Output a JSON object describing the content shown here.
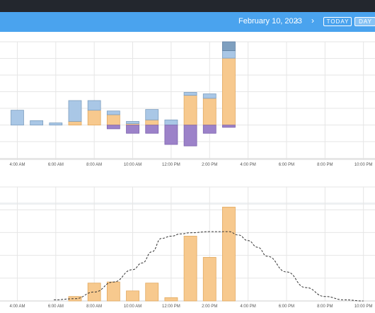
{
  "header": {
    "date": "February 10, 2023",
    "prev_icon": "chevron-left-icon",
    "next_icon": "chevron-right-icon",
    "today_label": "TODAY",
    "day_label": "DAY"
  },
  "colors": {
    "navbar": "#4aa3ee",
    "blue_light": "#a9c7e6",
    "blue_dark": "#7e9fbf",
    "orange": "#f7c98e",
    "purple": "#9c82c9",
    "grid": "#e6e6e6",
    "axis_text": "#555555"
  },
  "chart_data": [
    {
      "type": "bar",
      "x_unit": "hour",
      "x": [
        4,
        5,
        6,
        7,
        8,
        9,
        10,
        11,
        12,
        13,
        14,
        15
      ],
      "series": [
        {
          "values": [
            0,
            0,
            0,
            0,
            0,
            0,
            0,
            0,
            0,
            0,
            0,
            0.6
          ]
        },
        {
          "values": [
            0,
            0,
            0,
            0.25,
            1.0,
            0.7,
            0.1,
            0.35,
            0,
            2.0,
            1.8,
            4.5
          ]
        },
        {
          "values": [
            1.0,
            0.3,
            0.15,
            1.4,
            0.65,
            0.25,
            0.15,
            0.7,
            0.35,
            0.2,
            0.3,
            0.5
          ]
        },
        {
          "values": [
            0,
            0,
            0,
            0,
            0,
            -0.25,
            -0.55,
            -0.55,
            -1.3,
            -1.4,
            -0.55,
            -0.15
          ]
        }
      ],
      "xticks": [
        "4:00 AM",
        "6:00 AM",
        "8:00 AM",
        "10:00 AM",
        "12:00 PM",
        "2:00 PM",
        "4:00 PM",
        "6:00 PM",
        "8:00 PM",
        "10:00 PM"
      ],
      "xlim": [
        3.1,
        22.6
      ],
      "ylim": [
        -2.3,
        5.6
      ],
      "grid": true
    },
    {
      "type": "bar",
      "x_unit": "hour",
      "x": [
        7,
        8,
        9,
        10,
        11,
        12,
        13,
        14,
        15
      ],
      "values": [
        0.2,
        0.8,
        0.85,
        0.45,
        0.8,
        0.15,
        2.9,
        1.95,
        4.2
      ],
      "line": {
        "x": [
          5.9,
          7,
          8,
          9,
          10,
          10.5,
          11,
          11.5,
          12,
          12.5,
          13,
          14,
          15,
          15.5,
          16,
          16.5,
          17,
          18,
          19,
          20,
          21,
          22
        ],
        "y": [
          0.05,
          0.1,
          0.4,
          0.85,
          1.4,
          1.7,
          2.2,
          2.8,
          2.9,
          3.0,
          3.05,
          3.1,
          3.1,
          2.95,
          2.7,
          2.4,
          2.0,
          1.3,
          0.6,
          0.2,
          0.05,
          0.0
        ]
      },
      "xticks": [
        "4:00 AM",
        "6:00 AM",
        "8:00 AM",
        "10:00 AM",
        "12:00 PM",
        "2:00 PM",
        "4:00 PM",
        "6:00 PM",
        "8:00 PM",
        "10:00 PM"
      ],
      "xlim": [
        3.1,
        22.6
      ],
      "ylim": [
        0,
        5.1
      ],
      "grid": true
    }
  ]
}
